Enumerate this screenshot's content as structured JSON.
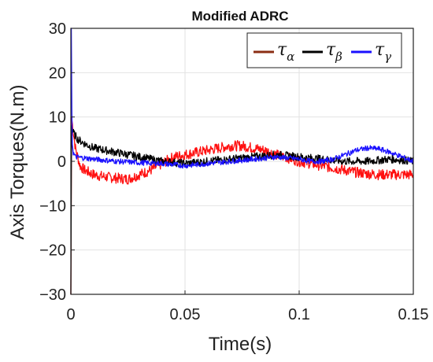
{
  "chart_data": {
    "type": "line",
    "title": "Modified ADRC",
    "xlabel": "Time(s)",
    "ylabel": "Axis Torques(N.m)",
    "xlim": [
      0,
      0.15
    ],
    "ylim": [
      -30,
      30
    ],
    "x_ticks": [
      0,
      0.05,
      0.1,
      0.15
    ],
    "x_tick_labels": [
      "0",
      "0.05",
      "0.1",
      "0.15"
    ],
    "y_ticks": [
      -30,
      -20,
      -10,
      0,
      10,
      20,
      30
    ],
    "y_tick_labels": [
      "−30",
      "−20",
      "−10",
      "0",
      "10",
      "20",
      "30"
    ],
    "grid": true,
    "legend_position": "top-right",
    "series": [
      {
        "name": "τα",
        "symbol": "τ",
        "subscript": "α",
        "legend_color": "#8b2e14",
        "color": "#ff1010",
        "noise": 1.2,
        "points": [
          [
            0,
            -30
          ],
          [
            0.0003,
            10
          ],
          [
            0.001,
            7
          ],
          [
            0.002,
            3
          ],
          [
            0.004,
            -1
          ],
          [
            0.006,
            -2
          ],
          [
            0.01,
            -3
          ],
          [
            0.015,
            -3.5
          ],
          [
            0.02,
            -3.8
          ],
          [
            0.025,
            -4
          ],
          [
            0.03,
            -3
          ],
          [
            0.035,
            -2
          ],
          [
            0.04,
            -0.5
          ],
          [
            0.045,
            1
          ],
          [
            0.05,
            1.5
          ],
          [
            0.055,
            2
          ],
          [
            0.06,
            2.5
          ],
          [
            0.065,
            3
          ],
          [
            0.07,
            3.5
          ],
          [
            0.075,
            3.5
          ],
          [
            0.08,
            3
          ],
          [
            0.085,
            2.5
          ],
          [
            0.09,
            1.5
          ],
          [
            0.095,
            0.8
          ],
          [
            0.1,
            0
          ],
          [
            0.105,
            -0.5
          ],
          [
            0.11,
            -1
          ],
          [
            0.115,
            -1.5
          ],
          [
            0.12,
            -2
          ],
          [
            0.125,
            -2.5
          ],
          [
            0.13,
            -2.8
          ],
          [
            0.135,
            -3
          ],
          [
            0.14,
            -3
          ],
          [
            0.145,
            -3
          ],
          [
            0.15,
            -3
          ]
        ]
      },
      {
        "name": "τβ",
        "symbol": "τ",
        "subscript": "β",
        "legend_color": "#000000",
        "color": "#000000",
        "noise": 0.9,
        "points": [
          [
            0,
            -30
          ],
          [
            0.0003,
            8
          ],
          [
            0.001,
            6.5
          ],
          [
            0.003,
            5
          ],
          [
            0.006,
            4
          ],
          [
            0.01,
            3
          ],
          [
            0.015,
            2.5
          ],
          [
            0.02,
            2
          ],
          [
            0.025,
            1.5
          ],
          [
            0.03,
            1
          ],
          [
            0.035,
            0.5
          ],
          [
            0.04,
            0
          ],
          [
            0.05,
            -0.5
          ],
          [
            0.06,
            0
          ],
          [
            0.07,
            0.5
          ],
          [
            0.08,
            1
          ],
          [
            0.09,
            1.5
          ],
          [
            0.1,
            1
          ],
          [
            0.11,
            0.5
          ],
          [
            0.12,
            0
          ],
          [
            0.13,
            0
          ],
          [
            0.14,
            0.5
          ],
          [
            0.145,
            0.3
          ],
          [
            0.15,
            0
          ]
        ]
      },
      {
        "name": "τγ",
        "symbol": "τ",
        "subscript": "γ",
        "legend_color": "#1a10ff",
        "color": "#1a10ff",
        "noise": 0.6,
        "points": [
          [
            0,
            30
          ],
          [
            0.0002,
            30
          ],
          [
            0.0005,
            5
          ],
          [
            0.001,
            2
          ],
          [
            0.002,
            1
          ],
          [
            0.005,
            0.8
          ],
          [
            0.01,
            0.5
          ],
          [
            0.02,
            0
          ],
          [
            0.03,
            -0.3
          ],
          [
            0.04,
            -0.5
          ],
          [
            0.05,
            -1
          ],
          [
            0.06,
            -0.5
          ],
          [
            0.07,
            0
          ],
          [
            0.08,
            0.5
          ],
          [
            0.09,
            1
          ],
          [
            0.1,
            0.5
          ],
          [
            0.105,
            0
          ],
          [
            0.11,
            0
          ],
          [
            0.115,
            0.5
          ],
          [
            0.12,
            1.5
          ],
          [
            0.125,
            2.5
          ],
          [
            0.13,
            3
          ],
          [
            0.135,
            2.8
          ],
          [
            0.14,
            2
          ],
          [
            0.145,
            1
          ],
          [
            0.15,
            0
          ]
        ]
      }
    ]
  }
}
